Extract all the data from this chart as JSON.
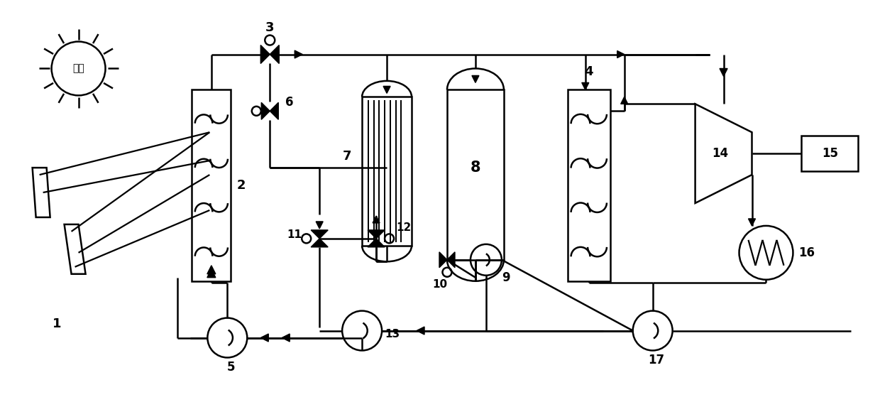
{
  "bg_color": "#ffffff",
  "line_color": "#000000",
  "lw": 1.8,
  "fig_width": 12.4,
  "fig_height": 5.66,
  "xlim": [
    0,
    124
  ],
  "ylim": [
    0,
    56.6
  ]
}
